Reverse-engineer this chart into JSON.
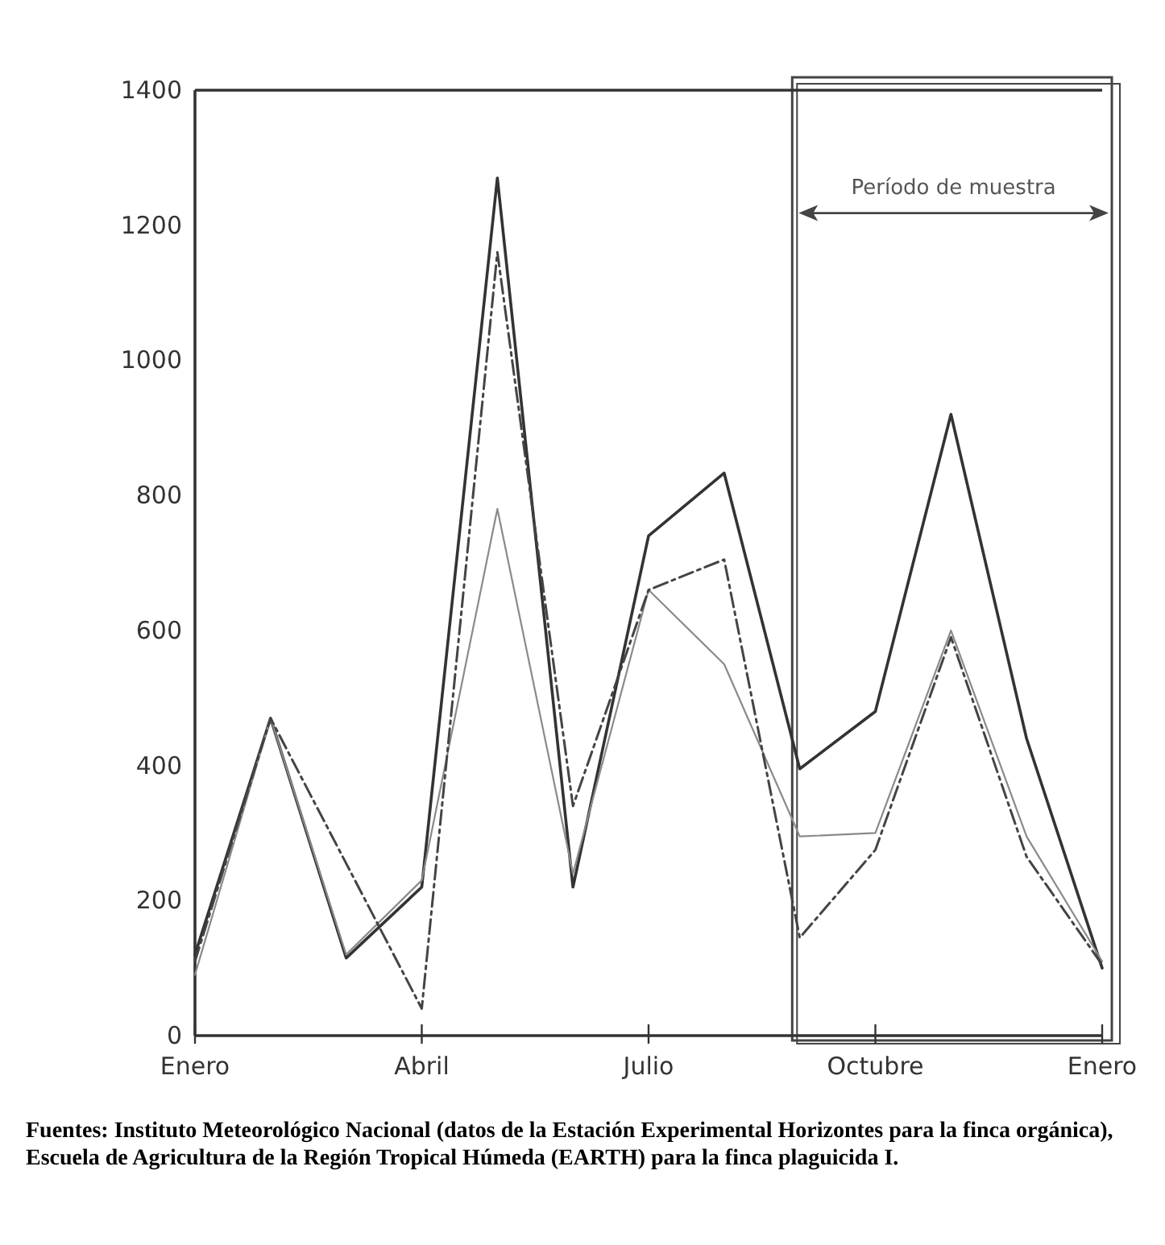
{
  "chart_data": {
    "type": "line",
    "categories": [
      "Enero",
      null,
      null,
      "Abril",
      null,
      null,
      "Julio",
      null,
      null,
      "Octubre",
      null,
      null,
      "Enero"
    ],
    "ylim": [
      0,
      1400
    ],
    "yticks": [
      0,
      200,
      400,
      600,
      800,
      1000,
      1200,
      1400
    ],
    "grid": false,
    "marker": "none",
    "series": [
      {
        "color": "#333333",
        "line_style": "solid",
        "values": [
          120,
          470,
          115,
          220,
          1270,
          220,
          740,
          833,
          395,
          480,
          920,
          440,
          100
        ]
      },
      {
        "color": "#8a8a8a",
        "line_style": "solid",
        "values": [
          90,
          470,
          120,
          230,
          780,
          240,
          660,
          550,
          295,
          300,
          600,
          295,
          110
        ]
      },
      {
        "color": "#444444",
        "line_style": "dashed",
        "values": [
          110,
          470,
          255,
          40,
          1160,
          340,
          660,
          705,
          145,
          275,
          590,
          265,
          105
        ]
      }
    ],
    "annotations": [
      "Período de muestra",
      "Fuentes: Instituto Meteorológico Nacional (datos de la Estación Experimental Horizontes para la finca orgánica), Escuela de Agricultura de la Región Tropical Húmeda (EARTH) para la finca plaguicida I."
    ]
  }
}
